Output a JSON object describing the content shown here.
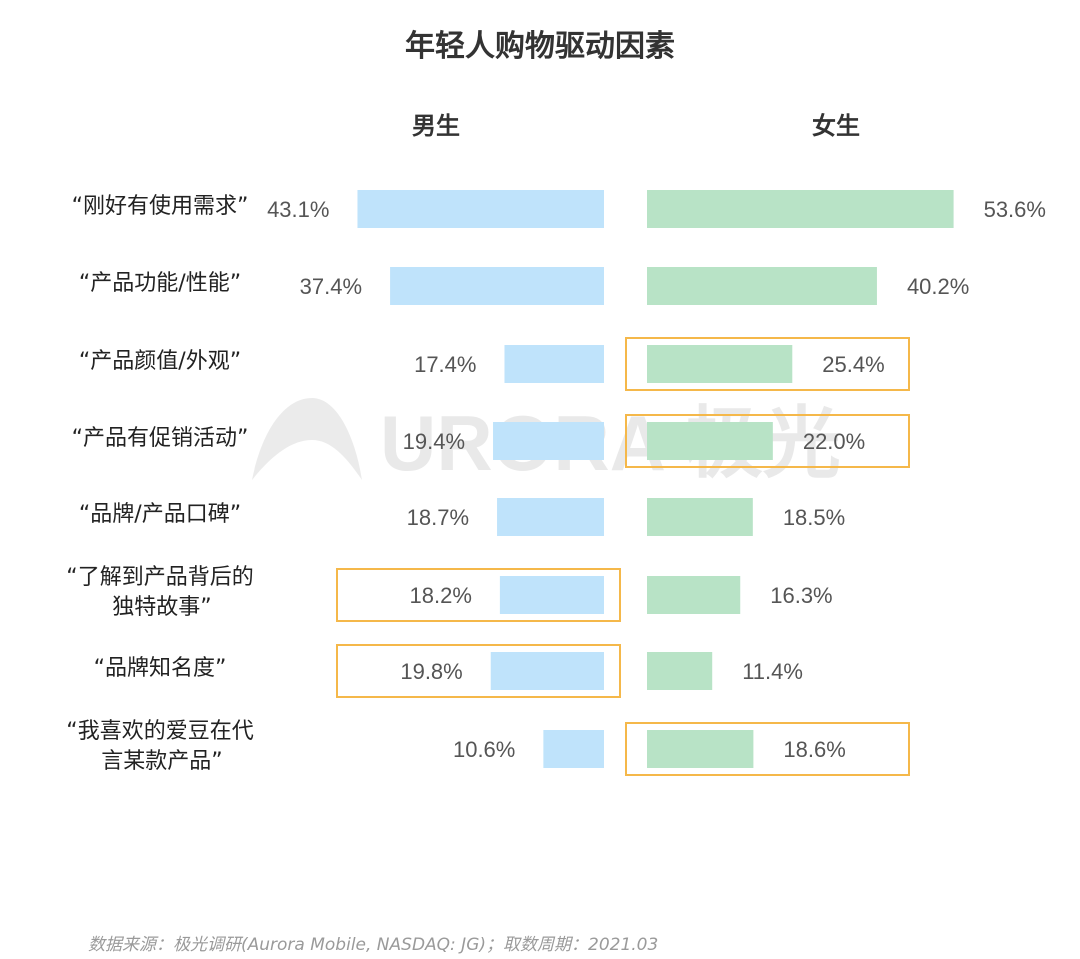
{
  "chart_data": {
    "type": "bar",
    "title": "年轻人购物驱动因素",
    "categories": [
      [
        "“刚好有使用需求”"
      ],
      [
        "“产品功能/性能”"
      ],
      [
        "“产品颜值/外观”"
      ],
      [
        "“产品有促销活动”"
      ],
      [
        "“品牌/产品口碑”"
      ],
      [
        "“了解到产品背后的",
        "独特故事”"
      ],
      [
        "“品牌知名度”"
      ],
      [
        "“我喜欢的爱豆在代",
        "言某款产品”"
      ]
    ],
    "series": [
      {
        "name": "男生",
        "values": [
          43.1,
          37.4,
          17.4,
          19.4,
          18.7,
          18.2,
          19.8,
          10.6
        ],
        "labels": [
          "43.1%",
          "37.4%",
          "17.4%",
          "19.4%",
          "18.7%",
          "18.2%",
          "19.8%",
          "10.6%"
        ],
        "highlighted": [
          false,
          false,
          false,
          false,
          false,
          true,
          true,
          false
        ],
        "color": "#bfe3fb"
      },
      {
        "name": "女生",
        "values": [
          53.6,
          40.2,
          25.4,
          22.0,
          18.5,
          16.3,
          11.4,
          18.6
        ],
        "labels": [
          "53.6%",
          "40.2%",
          "25.4%",
          "22.0%",
          "18.5%",
          "16.3%",
          "11.4%",
          "18.6%"
        ],
        "highlighted": [
          false,
          false,
          true,
          true,
          false,
          false,
          false,
          true
        ],
        "color": "#b8e3c6"
      }
    ],
    "highlight_color": "#f5b84a",
    "source": "数据来源：极光调研(Aurora Mobile, NASDAQ: JG)；取数周期：2021.03"
  },
  "watermark": "URORA 极光"
}
